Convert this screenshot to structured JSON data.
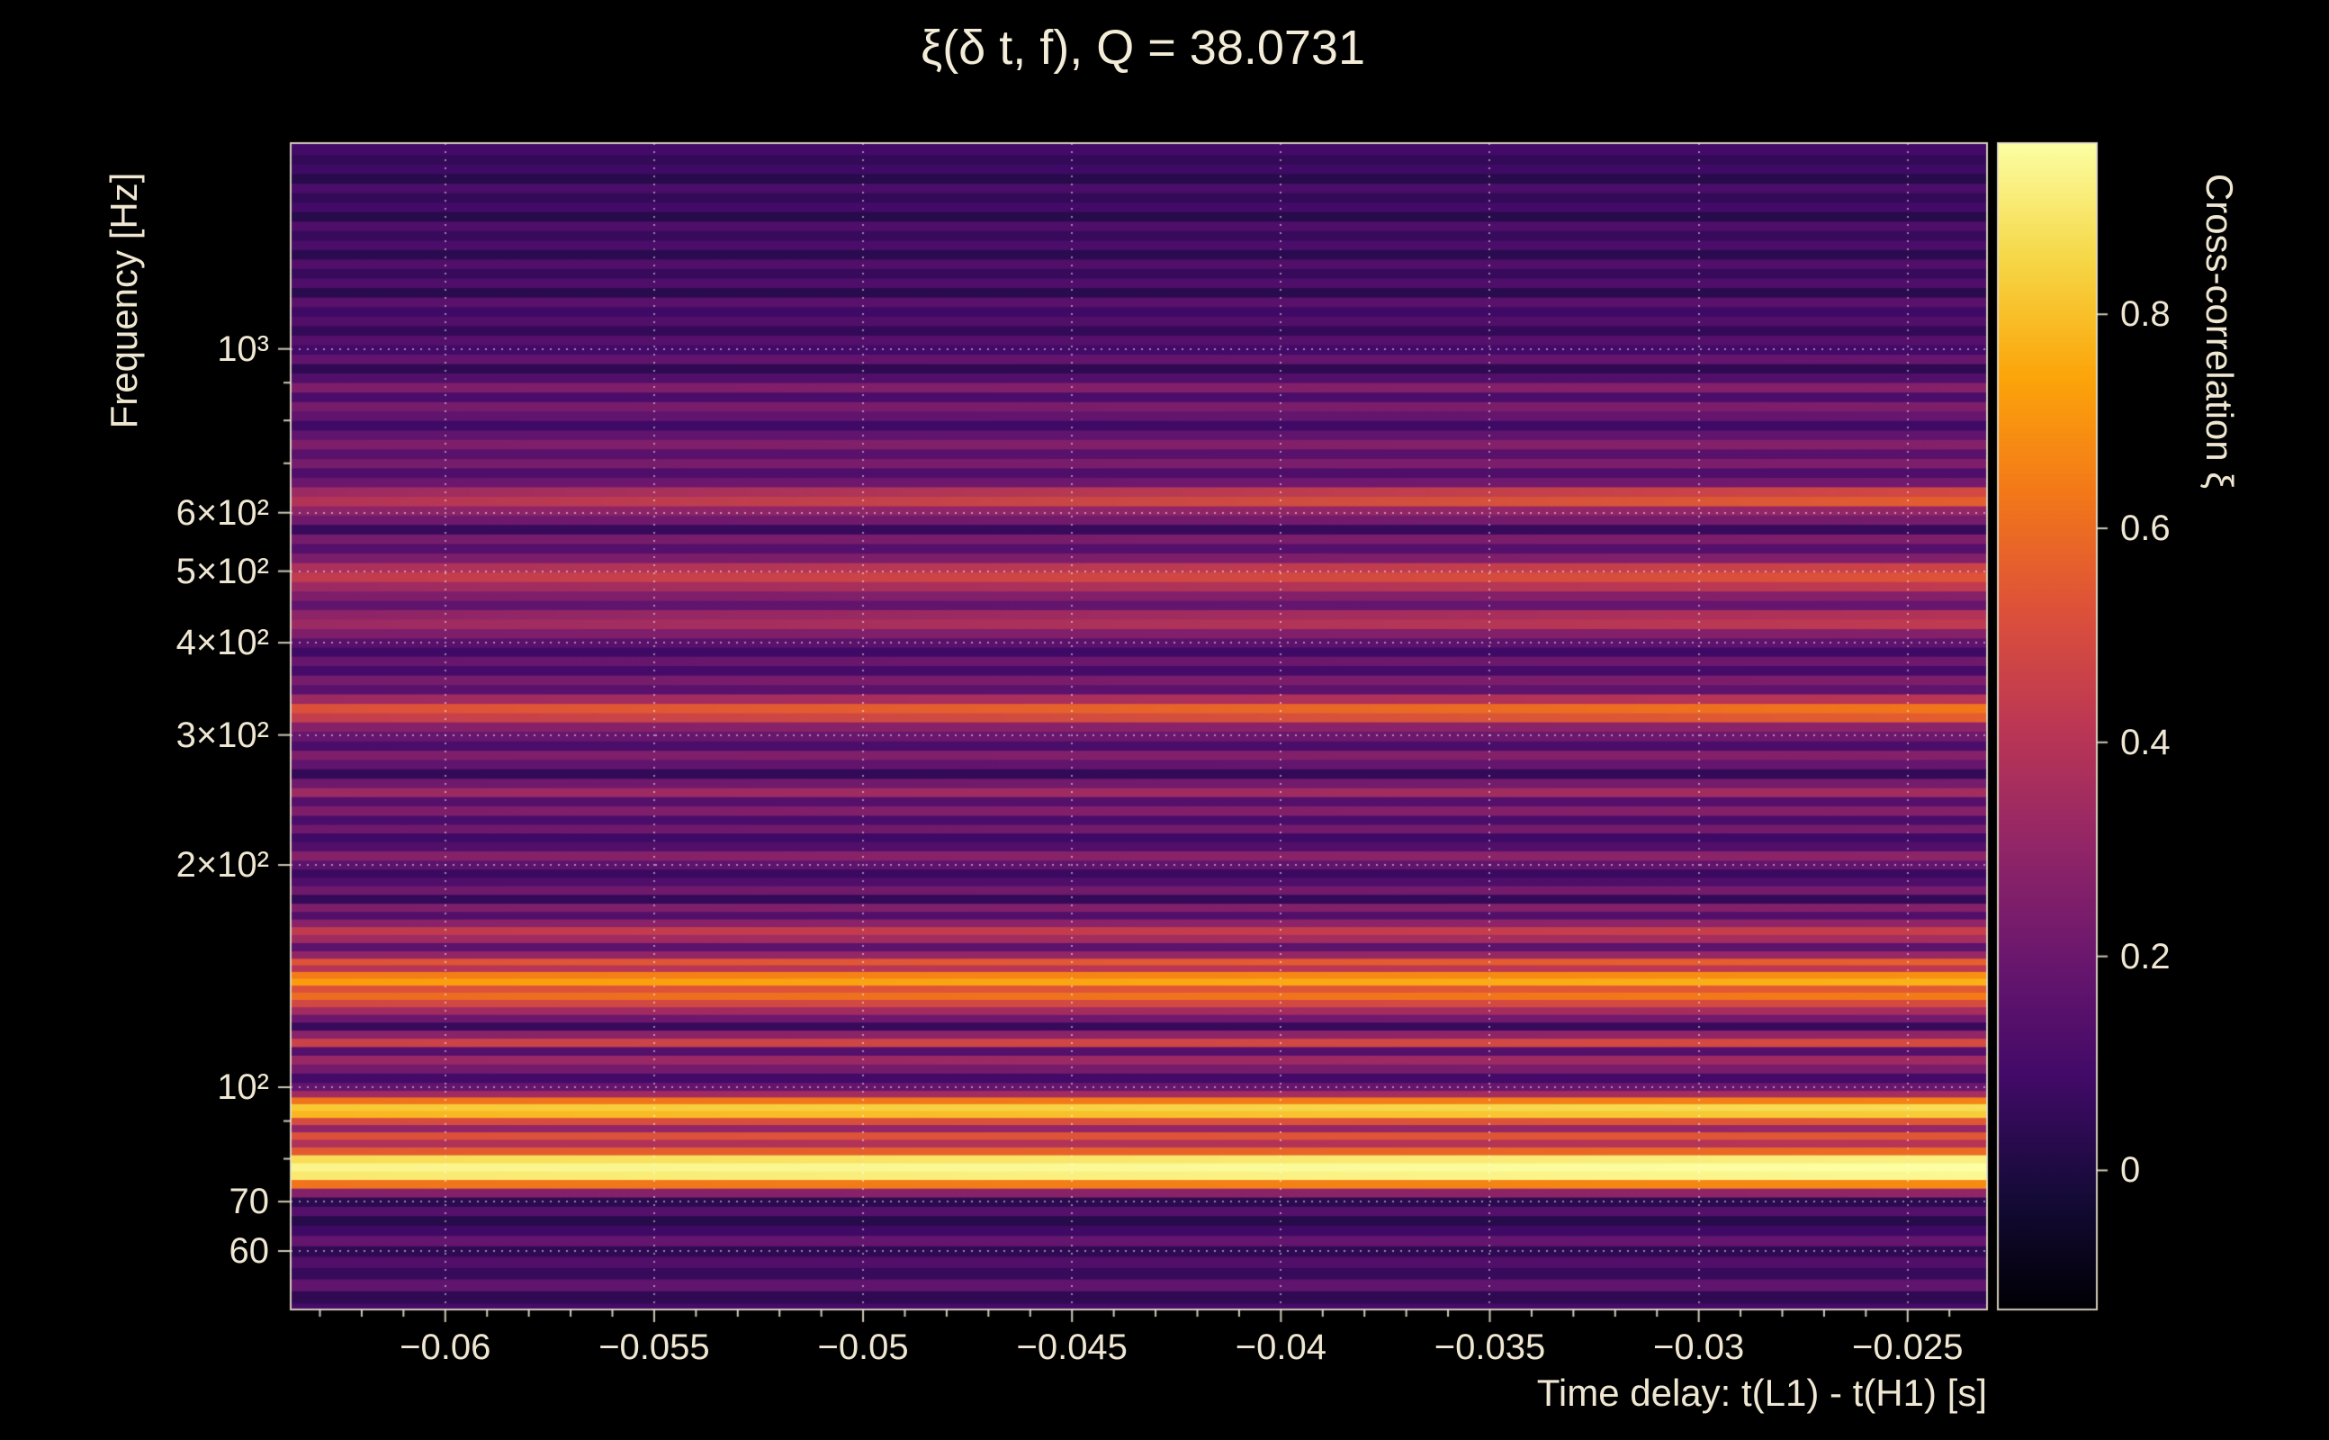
{
  "figure": {
    "background_color": "#000000",
    "text_color": "#efe7d2",
    "grid_color": "#ffffff"
  },
  "chart_data": {
    "type": "heatmap",
    "title": "ξ(δ t, f), Q = 38.0731",
    "q_value": 38.0731,
    "xlabel": "Time delay: t(L1) - t(H1) [s]",
    "ylabel": "Frequency [Hz]",
    "colorbar_label": "Cross-correlation ξ",
    "colormap": "inferno",
    "x_range": [
      -0.0637,
      -0.0231
    ],
    "y_range": [
      50,
      1900
    ],
    "y_scale": "log",
    "color_range": [
      -0.13,
      0.96
    ],
    "grid": "dotted",
    "x_ticks": [
      {
        "value": -0.06,
        "label": "−0.06"
      },
      {
        "value": -0.055,
        "label": "−0.055"
      },
      {
        "value": -0.05,
        "label": "−0.05"
      },
      {
        "value": -0.045,
        "label": "−0.045"
      },
      {
        "value": -0.04,
        "label": "−0.04"
      },
      {
        "value": -0.035,
        "label": "−0.035"
      },
      {
        "value": -0.03,
        "label": "−0.03"
      },
      {
        "value": -0.025,
        "label": "−0.025"
      }
    ],
    "y_ticks": [
      {
        "value": 1000,
        "label": "10³"
      },
      {
        "value": 600,
        "label": "6×10²"
      },
      {
        "value": 500,
        "label": "5×10²"
      },
      {
        "value": 400,
        "label": "4×10²"
      },
      {
        "value": 300,
        "label": "3×10²"
      },
      {
        "value": 200,
        "label": "2×10²"
      },
      {
        "value": 100,
        "label": "10²"
      },
      {
        "value": 70,
        "label": "70"
      },
      {
        "value": 60,
        "label": "60"
      }
    ],
    "y_minor_ticks": [
      50,
      80,
      90,
      700,
      800,
      900
    ],
    "colorbar_ticks": [
      {
        "value": 0.8,
        "label": "0.8"
      },
      {
        "value": 0.6,
        "label": "0.6"
      },
      {
        "value": 0.4,
        "label": "0.4"
      },
      {
        "value": 0.2,
        "label": "0.2"
      },
      {
        "value": 0,
        "label": "0"
      }
    ],
    "rows_format": [
      "frequency_hz",
      "xi_at_left_edge",
      "xi_at_right_edge"
    ],
    "rows": [
      [
        50,
        0.1,
        0.1
      ],
      [
        52,
        0.04,
        0.04
      ],
      [
        54,
        0.17,
        0.17
      ],
      [
        56,
        0.06,
        0.06
      ],
      [
        58,
        0.13,
        0.13
      ],
      [
        60,
        0.04,
        0.04
      ],
      [
        62,
        0.18,
        0.18
      ],
      [
        64,
        0.08,
        0.08
      ],
      [
        66,
        0.02,
        0.02
      ],
      [
        68,
        0.14,
        0.14
      ],
      [
        70,
        0.03,
        0.03
      ],
      [
        72,
        0.26,
        0.3
      ],
      [
        74,
        0.62,
        0.68
      ],
      [
        76,
        0.9,
        0.94
      ],
      [
        78,
        0.93,
        0.96
      ],
      [
        80,
        0.87,
        0.92
      ],
      [
        82,
        0.55,
        0.6
      ],
      [
        84,
        0.38,
        0.4
      ],
      [
        86,
        0.52,
        0.54
      ],
      [
        88,
        0.3,
        0.32
      ],
      [
        90,
        0.5,
        0.54
      ],
      [
        92,
        0.78,
        0.83
      ],
      [
        94,
        0.82,
        0.87
      ],
      [
        96,
        0.62,
        0.66
      ],
      [
        98,
        0.34,
        0.36
      ],
      [
        100,
        0.18,
        0.2
      ],
      [
        103,
        0.09,
        0.09
      ],
      [
        106,
        0.22,
        0.24
      ],
      [
        109,
        0.32,
        0.34
      ],
      [
        112,
        0.14,
        0.14
      ],
      [
        115,
        0.46,
        0.5
      ],
      [
        118,
        0.28,
        0.3
      ],
      [
        121,
        0.06,
        0.06
      ],
      [
        124,
        0.2,
        0.22
      ],
      [
        127,
        0.34,
        0.36
      ],
      [
        130,
        0.48,
        0.5
      ],
      [
        133,
        0.6,
        0.64
      ],
      [
        136,
        0.52,
        0.55
      ],
      [
        139,
        0.72,
        0.77
      ],
      [
        142,
        0.64,
        0.69
      ],
      [
        145,
        0.4,
        0.42
      ],
      [
        148,
        0.53,
        0.57
      ],
      [
        151,
        0.3,
        0.32
      ],
      [
        155,
        0.16,
        0.16
      ],
      [
        159,
        0.34,
        0.36
      ],
      [
        163,
        0.43,
        0.45
      ],
      [
        167,
        0.28,
        0.3
      ],
      [
        171,
        0.13,
        0.13
      ],
      [
        175,
        0.25,
        0.27
      ],
      [
        180,
        0.05,
        0.05
      ],
      [
        185,
        0.21,
        0.23
      ],
      [
        190,
        0.12,
        0.12
      ],
      [
        195,
        0.07,
        0.07
      ],
      [
        200,
        0.16,
        0.18
      ],
      [
        206,
        0.27,
        0.29
      ],
      [
        212,
        0.13,
        0.13
      ],
      [
        218,
        0.08,
        0.08
      ],
      [
        224,
        0.21,
        0.23
      ],
      [
        230,
        0.11,
        0.11
      ],
      [
        237,
        0.25,
        0.27
      ],
      [
        244,
        0.14,
        0.14
      ],
      [
        251,
        0.33,
        0.35
      ],
      [
        258,
        0.21,
        0.23
      ],
      [
        266,
        0.05,
        0.05
      ],
      [
        274,
        0.17,
        0.19
      ],
      [
        282,
        0.25,
        0.27
      ],
      [
        290,
        0.11,
        0.11
      ],
      [
        299,
        0.19,
        0.21
      ],
      [
        308,
        0.27,
        0.29
      ],
      [
        317,
        0.44,
        0.56
      ],
      [
        326,
        0.52,
        0.63
      ],
      [
        336,
        0.33,
        0.41
      ],
      [
        346,
        0.15,
        0.17
      ],
      [
        356,
        0.23,
        0.25
      ],
      [
        367,
        0.1,
        0.1
      ],
      [
        378,
        0.19,
        0.21
      ],
      [
        389,
        0.08,
        0.08
      ],
      [
        400,
        0.15,
        0.17
      ],
      [
        412,
        0.25,
        0.27
      ],
      [
        424,
        0.33,
        0.43
      ],
      [
        437,
        0.29,
        0.39
      ],
      [
        450,
        0.17,
        0.19
      ],
      [
        463,
        0.25,
        0.27
      ],
      [
        477,
        0.33,
        0.43
      ],
      [
        491,
        0.43,
        0.53
      ],
      [
        506,
        0.37,
        0.47
      ],
      [
        521,
        0.24,
        0.26
      ],
      [
        537,
        0.14,
        0.14
      ],
      [
        553,
        0.23,
        0.25
      ],
      [
        570,
        0.06,
        0.06
      ],
      [
        587,
        0.21,
        0.23
      ],
      [
        604,
        0.29,
        0.31
      ],
      [
        622,
        0.39,
        0.56
      ],
      [
        641,
        0.33,
        0.49
      ],
      [
        660,
        0.2,
        0.22
      ],
      [
        680,
        0.12,
        0.12
      ],
      [
        700,
        0.23,
        0.25
      ],
      [
        721,
        0.15,
        0.15
      ],
      [
        743,
        0.25,
        0.27
      ],
      [
        765,
        0.17,
        0.17
      ],
      [
        788,
        0.08,
        0.08
      ],
      [
        812,
        0.17,
        0.19
      ],
      [
        836,
        0.23,
        0.25
      ],
      [
        861,
        0.11,
        0.11
      ],
      [
        887,
        0.25,
        0.27
      ],
      [
        914,
        0.13,
        0.13
      ],
      [
        941,
        0.04,
        0.04
      ],
      [
        969,
        0.17,
        0.19
      ],
      [
        998,
        0.09,
        0.09
      ],
      [
        1028,
        0.14,
        0.14
      ],
      [
        1059,
        0.05,
        0.05
      ],
      [
        1091,
        0.13,
        0.13
      ],
      [
        1124,
        0.08,
        0.08
      ],
      [
        1158,
        0.15,
        0.15
      ],
      [
        1193,
        0.03,
        0.03
      ],
      [
        1229,
        0.12,
        0.12
      ],
      [
        1266,
        0.06,
        0.06
      ],
      [
        1304,
        0.13,
        0.13
      ],
      [
        1343,
        0.03,
        0.03
      ],
      [
        1383,
        0.11,
        0.11
      ],
      [
        1425,
        0.06,
        0.06
      ],
      [
        1468,
        0.12,
        0.12
      ],
      [
        1512,
        0.02,
        0.02
      ],
      [
        1557,
        0.09,
        0.09
      ],
      [
        1604,
        0.05,
        0.05
      ],
      [
        1652,
        0.11,
        0.11
      ],
      [
        1702,
        0.02,
        0.02
      ],
      [
        1753,
        0.08,
        0.08
      ],
      [
        1806,
        0.05,
        0.05
      ],
      [
        1860,
        0.09,
        0.09
      ]
    ]
  }
}
